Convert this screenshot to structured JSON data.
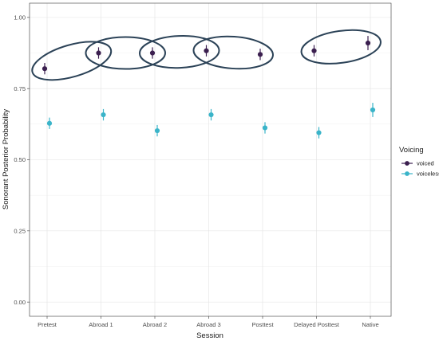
{
  "chart_data": {
    "type": "scatter",
    "categories": [
      "Pretest",
      "Abroad 1",
      "Abroad 2",
      "Abroad 3",
      "Posttest",
      "Delayed Posttest",
      "Native"
    ],
    "series": [
      {
        "name": "voiced",
        "color": "#3b1f4f",
        "values": [
          0.82,
          0.875,
          0.875,
          0.883,
          0.87,
          0.883,
          0.91
        ],
        "errors": [
          0.02,
          0.02,
          0.02,
          0.02,
          0.02,
          0.02,
          0.025
        ]
      },
      {
        "name": "voiceless",
        "color": "#3ab4c9",
        "values": [
          0.628,
          0.658,
          0.602,
          0.658,
          0.612,
          0.595,
          0.675
        ],
        "errors": [
          0.02,
          0.02,
          0.02,
          0.02,
          0.02,
          0.02,
          0.025
        ]
      }
    ],
    "xlabel": "Session",
    "ylabel": "Sonorant Posterior Probability",
    "ylim": [
      -0.05,
      1.05
    ],
    "yticks": [
      0.0,
      0.25,
      0.5,
      0.75,
      1.0
    ],
    "ytick_labels": [
      "0.00",
      "0.25",
      "0.50",
      "0.75",
      "1.00"
    ],
    "grid": true,
    "legend": {
      "title": "Voicing",
      "placement": "right"
    },
    "annotations": {
      "type": "ellipses",
      "color": "#2b4257",
      "groups": [
        [
          "Pretest",
          "Abroad 1"
        ],
        [
          "Abroad 1",
          "Abroad 2"
        ],
        [
          "Abroad 2",
          "Abroad 3"
        ],
        [
          "Abroad 3",
          "Posttest"
        ],
        [
          "Delayed Posttest",
          "Native"
        ]
      ]
    }
  }
}
